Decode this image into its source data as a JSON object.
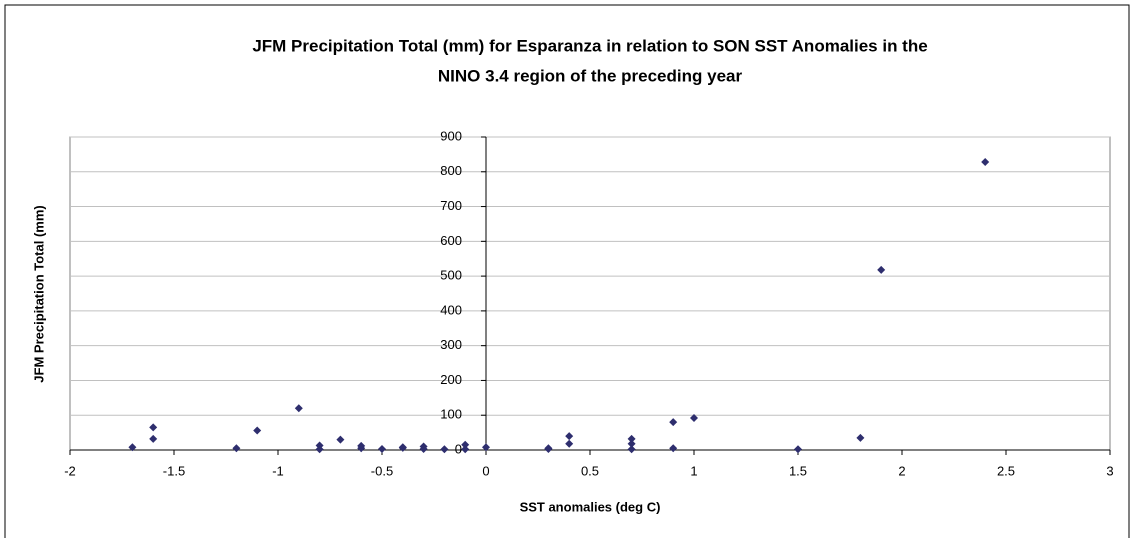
{
  "chart_data": {
    "type": "scatter",
    "title": [
      "JFM Precipitation Total (mm) for Esparanza in relation to SON SST Anomalies in the",
      "NINO 3.4 region of the preceding year"
    ],
    "x_label": "SST anomalies (deg C)",
    "y_label": "JFM Precipitation Total (mm)",
    "xlim": [
      -2,
      3
    ],
    "ylim": [
      0,
      900
    ],
    "xticks": [
      -2,
      -1.5,
      -1,
      -0.5,
      0,
      0.5,
      1,
      1.5,
      2,
      2.5,
      3
    ],
    "yticks": [
      0,
      100,
      200,
      300,
      400,
      500,
      600,
      700,
      800,
      900
    ],
    "grid": true,
    "color": "#2e2e6e",
    "x": [
      -1.7,
      -1.6,
      -1.6,
      -1.2,
      -1.1,
      -0.9,
      -0.8,
      -0.8,
      -0.7,
      -0.6,
      -0.6,
      -0.5,
      -0.4,
      -0.4,
      -0.3,
      -0.3,
      -0.2,
      -0.1,
      -0.1,
      0,
      0.3,
      0.3,
      0.4,
      0.4,
      0.7,
      0.7,
      0.7,
      0.9,
      0.9,
      1,
      1.5,
      1.8,
      1.9,
      2.4
    ],
    "values": [
      8,
      65,
      32,
      5,
      56,
      120,
      13,
      2,
      30,
      12,
      5,
      3,
      8,
      6,
      10,
      3,
      2,
      15,
      2,
      8,
      3,
      5,
      40,
      18,
      32,
      18,
      2,
      80,
      5,
      92,
      2,
      35,
      518,
      828
    ]
  }
}
